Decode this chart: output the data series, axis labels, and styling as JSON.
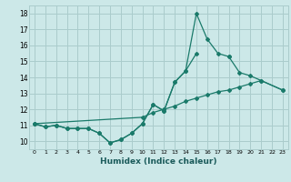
{
  "xlabel": "Humidex (Indice chaleur)",
  "bg_color": "#cce8e8",
  "grid_color": "#aacccc",
  "line_color": "#1a7a6a",
  "xlim": [
    -0.5,
    23.5
  ],
  "ylim": [
    9.5,
    18.5
  ],
  "yticks": [
    10,
    11,
    12,
    13,
    14,
    15,
    16,
    17,
    18
  ],
  "xticks": [
    0,
    1,
    2,
    3,
    4,
    5,
    6,
    7,
    8,
    9,
    10,
    11,
    12,
    13,
    14,
    15,
    16,
    17,
    18,
    19,
    20,
    21,
    22,
    23
  ],
  "line1_x": [
    0,
    1,
    2,
    3,
    4,
    5,
    6,
    7,
    8,
    9,
    10,
    11,
    12,
    13,
    14,
    15,
    16,
    17,
    18
  ],
  "line1_y": [
    11.1,
    10.9,
    11.0,
    10.8,
    10.8,
    10.8,
    10.5,
    9.9,
    10.1,
    10.5,
    11.1,
    12.3,
    11.9,
    13.7,
    14.4,
    18.0,
    16.4,
    15.5,
    15.3
  ],
  "line2_seg1_x": [
    0,
    1,
    2,
    3,
    4,
    5,
    6,
    7,
    8,
    9,
    10,
    11,
    12,
    13,
    14,
    15
  ],
  "line2_seg1_y": [
    11.1,
    10.9,
    11.0,
    10.8,
    10.8,
    10.8,
    10.5,
    9.9,
    10.1,
    10.5,
    11.1,
    12.3,
    11.9,
    13.7,
    14.4,
    15.5
  ],
  "line2_seg2_x": [
    18,
    19,
    20,
    21,
    23
  ],
  "line2_seg2_y": [
    15.3,
    14.3,
    14.1,
    13.8,
    13.2
  ],
  "line3_x": [
    0,
    10,
    11,
    12,
    13,
    14,
    15,
    16,
    17,
    18,
    19,
    20,
    21,
    23
  ],
  "line3_y": [
    11.1,
    11.5,
    11.8,
    12.0,
    12.2,
    12.5,
    12.7,
    12.9,
    13.1,
    13.2,
    13.4,
    13.6,
    13.8,
    13.2
  ]
}
